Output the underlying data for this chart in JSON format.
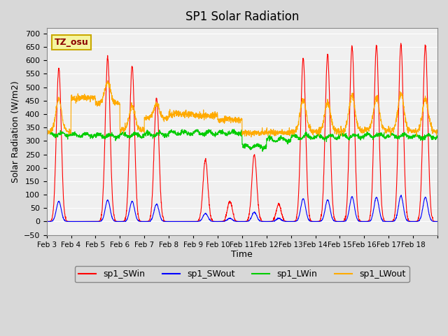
{
  "title": "SP1 Solar Radiation",
  "xlabel": "Time",
  "ylabel": "Solar Radiation (W/m2)",
  "ylim": [
    -50,
    720
  ],
  "colors": {
    "SWin": "#ff0000",
    "SWout": "#0000ff",
    "LWin": "#00cc00",
    "LWout": "#ffaa00"
  },
  "tz_label": "TZ_osu",
  "legend_labels": [
    "sp1_SWin",
    "sp1_SWout",
    "sp1_LWin",
    "sp1_LWout"
  ],
  "fig_bg_color": "#d8d8d8",
  "axes_bg_color": "#f0f0f0",
  "grid_color": "#ffffff",
  "n_days": 16,
  "points_per_day": 144,
  "x_tick_positions": [
    0,
    1,
    2,
    3,
    4,
    5,
    6,
    7,
    8,
    9,
    10,
    11,
    12,
    13,
    14,
    15,
    16
  ],
  "x_tick_labels": [
    "Feb 3",
    "Feb 4",
    "Feb 5",
    "Feb 6",
    "Feb 7",
    "Feb 8",
    "Feb 9",
    "Feb 10",
    "Feb 11",
    "Feb 12",
    "Feb 13",
    "Feb 14",
    "Feb 15",
    "Feb 16",
    "Feb 17",
    "Feb 18",
    ""
  ],
  "day_peaks_sw": [
    570,
    0,
    610,
    580,
    460,
    0,
    230,
    75,
    250,
    65,
    610,
    620,
    655,
    655,
    660,
    655
  ],
  "day_peaks_swout": [
    75,
    0,
    80,
    75,
    65,
    0,
    30,
    12,
    35,
    12,
    85,
    80,
    92,
    90,
    95,
    90
  ],
  "lwin_base": [
    325,
    322,
    318,
    322,
    325,
    330,
    330,
    330,
    280,
    305,
    315,
    315,
    318,
    320,
    318,
    315
  ],
  "lwout_base": [
    335,
    460,
    440,
    340,
    385,
    400,
    395,
    380,
    330,
    330,
    335,
    335,
    338,
    340,
    338,
    335
  ],
  "lwout_peak": [
    120,
    0,
    80,
    90,
    50,
    0,
    0,
    0,
    0,
    0,
    120,
    110,
    130,
    120,
    140,
    120
  ]
}
